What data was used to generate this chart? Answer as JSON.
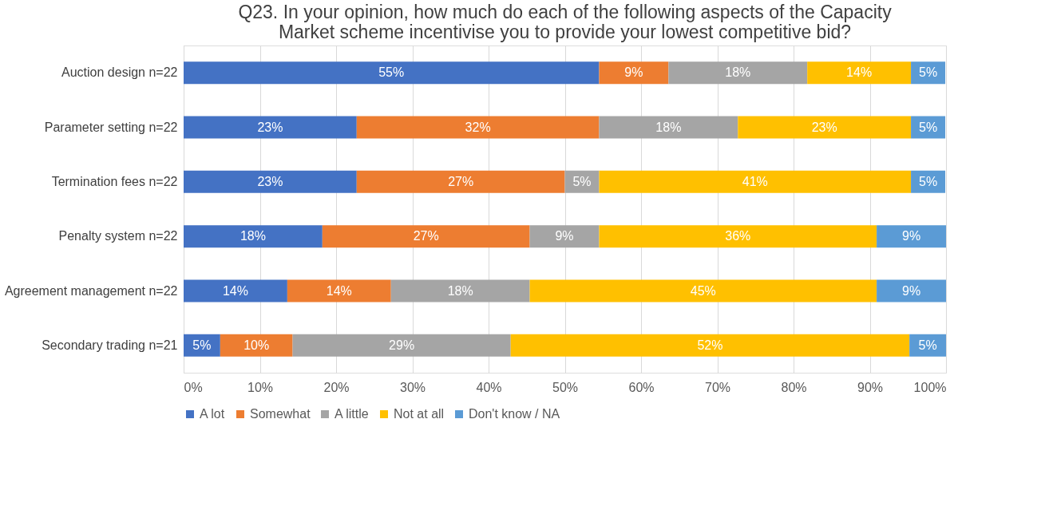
{
  "chart_data": {
    "type": "bar",
    "orientation": "horizontal",
    "stacked": true,
    "title": "Q23. In your opinion, how much do each of the following aspects of the Capacity Market scheme incentivise you to provide your lowest competitive bid?",
    "categories": [
      "Auction design n=22",
      "Parameter setting n=22",
      "Termination fees n=22",
      "Penalty system n=22",
      "Agreement management n=22",
      "Secondary trading n=21"
    ],
    "series": [
      {
        "name": "A lot",
        "color": "#4472c4",
        "values": [
          54.5,
          22.7,
          22.7,
          18.2,
          13.6,
          4.8
        ],
        "value_labels": [
          "55%",
          "23%",
          "23%",
          "18%",
          "14%",
          "5%"
        ]
      },
      {
        "name": "Somewhat",
        "color": "#ed7d31",
        "values": [
          9.1,
          31.8,
          27.3,
          27.2,
          13.6,
          9.5
        ],
        "value_labels": [
          "9%",
          "32%",
          "27%",
          "27%",
          "14%",
          "10%"
        ]
      },
      {
        "name": "A little",
        "color": "#a5a5a5",
        "values": [
          18.2,
          18.2,
          4.5,
          9.1,
          18.2,
          28.6
        ],
        "value_labels": [
          "18%",
          "18%",
          "5%",
          "9%",
          "18%",
          "29%"
        ]
      },
      {
        "name": "Not at all",
        "color": "#ffc000",
        "values": [
          13.6,
          22.7,
          40.9,
          36.4,
          45.5,
          52.3
        ],
        "value_labels": [
          "14%",
          "23%",
          "41%",
          "36%",
          "45%",
          "52%"
        ]
      },
      {
        "name": "Don't know / NA",
        "color": "#5b9bd5",
        "values": [
          4.5,
          4.5,
          4.5,
          9.1,
          9.1,
          4.8
        ],
        "value_labels": [
          "5%",
          "5%",
          "5%",
          "9%",
          "9%",
          "5%"
        ]
      }
    ],
    "xlim": [
      0,
      100
    ],
    "xticks": [
      {
        "value": 0,
        "label": "0%"
      },
      {
        "value": 10,
        "label": "10%"
      },
      {
        "value": 20,
        "label": "20%"
      },
      {
        "value": 30,
        "label": "30%"
      },
      {
        "value": 40,
        "label": "40%"
      },
      {
        "value": 50,
        "label": "50%"
      },
      {
        "value": 60,
        "label": "60%"
      },
      {
        "value": 70,
        "label": "70%"
      },
      {
        "value": 80,
        "label": "80%"
      },
      {
        "value": 90,
        "label": "90%"
      },
      {
        "value": 100,
        "label": "100%"
      }
    ],
    "grid": "x",
    "legend": "bottom"
  }
}
